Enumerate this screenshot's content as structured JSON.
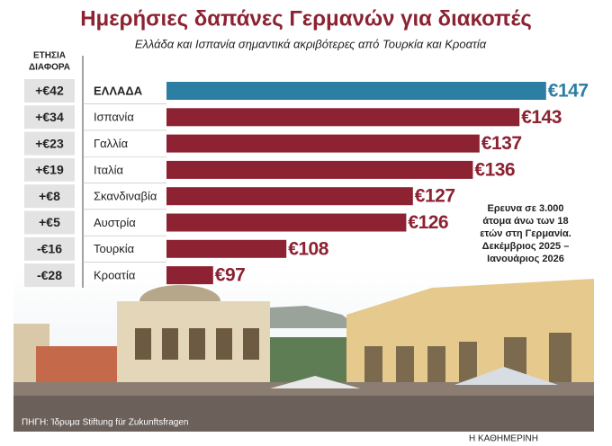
{
  "chart_data": {
    "type": "bar",
    "orientation": "horizontal",
    "title": "Ημερήσιες δαπάνες Γερμανών για διακοπές",
    "subtitle": "Ελλάδα και Ισπανία σημαντικά ακριβότερες από Τουρκία και Κροατία",
    "column_header": [
      "ΕΤΗΣΙΑ",
      "ΔΙΑΦΟΡΑ"
    ],
    "categories": [
      "ΕΛΛΑΔΑ",
      "Ισπανία",
      "Γαλλία",
      "Ιταλία",
      "Σκανδιναβία",
      "Αυστρία",
      "Τουρκία",
      "Κροατία"
    ],
    "differences": [
      "+€42",
      "+€34",
      "+€23",
      "+€19",
      "+€8",
      "+€5",
      "-€16",
      "-€28"
    ],
    "values": [
      147,
      143,
      137,
      136,
      127,
      126,
      108,
      97
    ],
    "value_labels": [
      "€147",
      "€143",
      "€137",
      "€136",
      "€127",
      "€126",
      "€108",
      "€97"
    ],
    "colors": [
      "#2d7ea3",
      "#8c2232",
      "#8c2232",
      "#8c2232",
      "#8c2232",
      "#8c2232",
      "#8c2232",
      "#8c2232"
    ],
    "xlim": [
      90,
      150
    ],
    "note": [
      "Ερευνα σε 3.000",
      "άτομα άνω των 18",
      "ετών στη Γερμανία.",
      "Δεκέμβριος 2025 –",
      "Ιανουάριος 2026"
    ],
    "source": "ΠΗΓΗ: Ίδρυμα Stiftung für Zukunftsfragen",
    "credit": "Η ΚΑΘΗΜΕΡΙΝΗ"
  }
}
